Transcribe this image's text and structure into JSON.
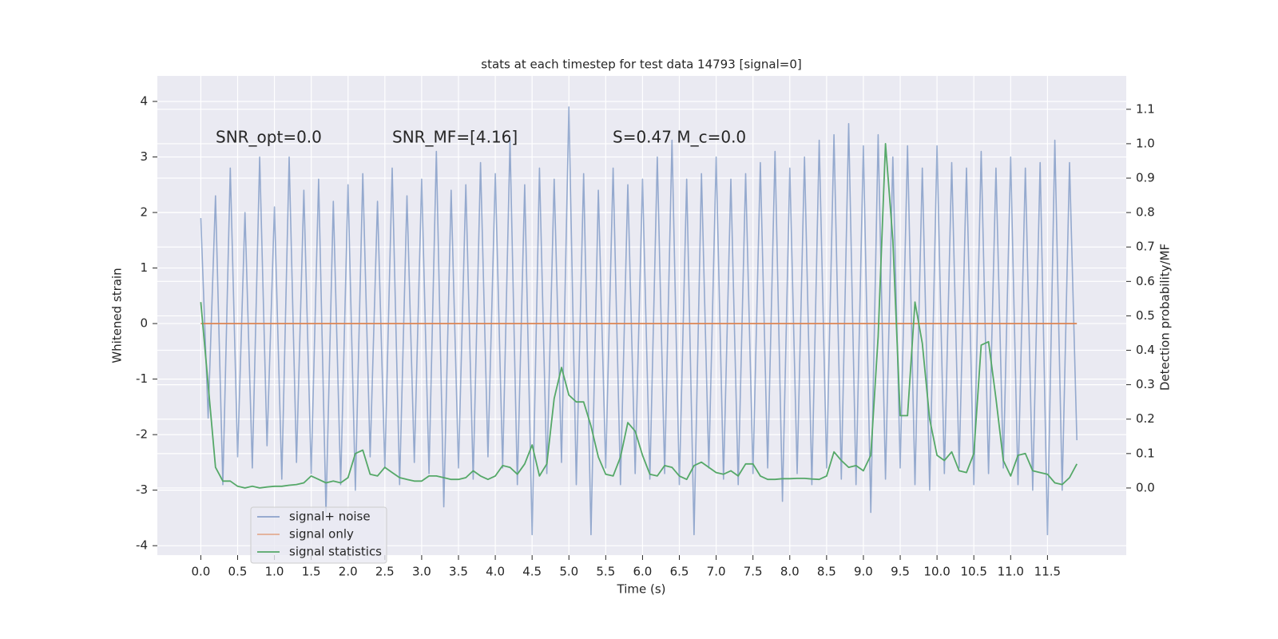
{
  "chart_data": {
    "type": "line",
    "title": "stats at each timestep for test data 14793 [signal=0]",
    "xlabel": "Time (s)",
    "ylabel": "Whitened strain",
    "y2label": "Detection probability/MF",
    "annotations": [
      "SNR_opt=0.0",
      "SNR_MF=[4.16]",
      "S=0.47   M_c=0.0"
    ],
    "xlim": [
      -0.59,
      12.57
    ],
    "ylim": [
      -4.17,
      4.46
    ],
    "y2lim": [
      -0.195,
      1.197
    ],
    "xticks": [
      {
        "value": 0,
        "label": "0.0"
      },
      0.5,
      {
        "value": 1,
        "label": "1.0"
      },
      1.5,
      {
        "value": 2,
        "label": "2.0"
      },
      2.5,
      {
        "value": 3,
        "label": "3.0"
      },
      3.5,
      {
        "value": 4,
        "label": "4.0"
      },
      4.5,
      {
        "value": 5,
        "label": "5.0"
      },
      5.5,
      {
        "value": 6,
        "label": "6.0"
      },
      6.5,
      {
        "value": 7,
        "label": "7.0"
      },
      7.5,
      {
        "value": 8,
        "label": "8.0"
      },
      8.5,
      {
        "value": 9,
        "label": "9.0"
      },
      9.5,
      {
        "value": 10,
        "label": "10.0"
      },
      10.5,
      {
        "value": 11,
        "label": "11.0"
      },
      11.5
    ],
    "yticks": [
      -4,
      -3,
      -2,
      -1,
      0,
      1,
      2,
      3,
      4
    ],
    "y2ticks": [
      {
        "value": 0,
        "label": "0.0"
      },
      0.1,
      0.2,
      0.3,
      0.4,
      0.5,
      0.6,
      0.7,
      0.8,
      0.9,
      {
        "value": 1,
        "label": "1.0"
      },
      1.1
    ],
    "grid": true,
    "legend": "lower left",
    "x": [
      0.0,
      0.1,
      0.2,
      0.3,
      0.4,
      0.5,
      0.6,
      0.7,
      0.8,
      0.9,
      1.0,
      1.1,
      1.2,
      1.3,
      1.4,
      1.5,
      1.6,
      1.7,
      1.8,
      1.9,
      2.0,
      2.1,
      2.2,
      2.3,
      2.4,
      2.5,
      2.6,
      2.7,
      2.8,
      2.9,
      3.0,
      3.1,
      3.2,
      3.3,
      3.4,
      3.5,
      3.6,
      3.7,
      3.8,
      3.9,
      4.0,
      4.1,
      4.2,
      4.3,
      4.4,
      4.5,
      4.6,
      4.7,
      4.8,
      4.9,
      5.0,
      5.1,
      5.2,
      5.3,
      5.4,
      5.5,
      5.6,
      5.7,
      5.8,
      5.9,
      6.0,
      6.1,
      6.2,
      6.3,
      6.4,
      6.5,
      6.6,
      6.7,
      6.8,
      6.9,
      7.0,
      7.1,
      7.2,
      7.3,
      7.4,
      7.5,
      7.6,
      7.7,
      7.8,
      7.9,
      8.0,
      8.1,
      8.2,
      8.3,
      8.4,
      8.5,
      8.6,
      8.7,
      8.8,
      8.9,
      9.0,
      9.1,
      9.2,
      9.3,
      9.4,
      9.5,
      9.6,
      9.7,
      9.8,
      9.9,
      10.0,
      10.1,
      10.2,
      10.3,
      10.4,
      10.5,
      10.6,
      10.7,
      10.8,
      10.9,
      11.0,
      11.1,
      11.2,
      11.3,
      11.4,
      11.5,
      11.6,
      11.7,
      11.8,
      11.9
    ],
    "series": [
      {
        "name": "signal+ noise",
        "color": "#4c72b0",
        "values": [
          1.9,
          -1.7,
          2.3,
          -2.9,
          2.8,
          -2.4,
          2.0,
          -2.6,
          3.0,
          -2.2,
          2.1,
          -2.8,
          3.0,
          -2.5,
          2.4,
          -2.7,
          2.6,
          -3.4,
          2.2,
          -2.9,
          2.5,
          -3.0,
          2.7,
          -2.4,
          2.2,
          -2.6,
          2.8,
          -2.9,
          2.3,
          -2.5,
          2.6,
          -2.7,
          3.1,
          -3.3,
          2.4,
          -2.6,
          2.5,
          -2.8,
          2.9,
          -2.4,
          2.7,
          -2.6,
          3.3,
          -2.9,
          2.5,
          -3.8,
          2.8,
          -2.7,
          2.6,
          -2.5,
          3.9,
          -2.9,
          2.7,
          -3.8,
          2.4,
          -2.6,
          2.8,
          -2.9,
          2.5,
          -2.7,
          2.6,
          -2.8,
          3.0,
          -2.7,
          3.3,
          -2.9,
          2.6,
          -3.8,
          2.7,
          -2.6,
          3.0,
          -2.8,
          2.6,
          -2.9,
          2.7,
          -2.7,
          2.9,
          -2.6,
          3.1,
          -3.2,
          2.8,
          -2.7,
          3.0,
          -2.9,
          3.3,
          -2.6,
          3.4,
          -2.8,
          3.6,
          -2.9,
          3.2,
          -3.4,
          3.4,
          -2.8,
          3.0,
          -2.6,
          3.2,
          -2.9,
          2.8,
          -3.0,
          3.2,
          -2.7,
          2.9,
          -2.6,
          2.8,
          -2.9,
          3.1,
          -2.7,
          2.8,
          -2.6,
          3.0,
          -2.9,
          2.8,
          -3.0,
          2.9,
          -3.8,
          3.3,
          -3.0,
          2.9,
          -2.1
        ]
      },
      {
        "name": "signal only",
        "color": "#dd8452",
        "values": [
          0,
          0,
          0,
          0,
          0,
          0,
          0,
          0,
          0,
          0,
          0,
          0,
          0,
          0,
          0,
          0,
          0,
          0,
          0,
          0,
          0,
          0,
          0,
          0,
          0,
          0,
          0,
          0,
          0,
          0,
          0,
          0,
          0,
          0,
          0,
          0,
          0,
          0,
          0,
          0,
          0,
          0,
          0,
          0,
          0,
          0,
          0,
          0,
          0,
          0,
          0,
          0,
          0,
          0,
          0,
          0,
          0,
          0,
          0,
          0,
          0,
          0,
          0,
          0,
          0,
          0,
          0,
          0,
          0,
          0,
          0,
          0,
          0,
          0,
          0,
          0,
          0,
          0,
          0,
          0,
          0,
          0,
          0,
          0,
          0,
          0,
          0,
          0,
          0,
          0,
          0,
          0,
          0,
          0,
          0,
          0,
          0,
          0,
          0,
          0,
          0,
          0,
          0,
          0,
          0,
          0,
          0,
          0,
          0,
          0,
          0,
          0,
          0,
          0,
          0,
          0,
          0,
          0,
          0,
          0
        ]
      },
      {
        "name": "signal statistics",
        "color": "#55a868",
        "axis": "y2",
        "values": [
          0.54,
          0.3,
          0.06,
          0.02,
          0.02,
          0.005,
          0,
          0.005,
          0,
          0.003,
          0.005,
          0.005,
          0.008,
          0.01,
          0.015,
          0.035,
          0.025,
          0.015,
          0.02,
          0.015,
          0.03,
          0.1,
          0.11,
          0.04,
          0.035,
          0.06,
          0.045,
          0.03,
          0.025,
          0.02,
          0.02,
          0.035,
          0.035,
          0.03,
          0.025,
          0.025,
          0.03,
          0.05,
          0.035,
          0.025,
          0.035,
          0.065,
          0.06,
          0.04,
          0.07,
          0.125,
          0.035,
          0.07,
          0.26,
          0.35,
          0.27,
          0.25,
          0.25,
          0.18,
          0.09,
          0.04,
          0.035,
          0.09,
          0.19,
          0.165,
          0.095,
          0.04,
          0.035,
          0.065,
          0.06,
          0.035,
          0.025,
          0.065,
          0.075,
          0.06,
          0.045,
          0.04,
          0.05,
          0.035,
          0.07,
          0.07,
          0.035,
          0.025,
          0.025,
          0.027,
          0.027,
          0.028,
          0.028,
          0.026,
          0.025,
          0.035,
          0.105,
          0.08,
          0.06,
          0.065,
          0.05,
          0.095,
          0.44,
          1.0,
          0.72,
          0.21,
          0.21,
          0.54,
          0.42,
          0.2,
          0.095,
          0.08,
          0.105,
          0.05,
          0.045,
          0.1,
          0.415,
          0.425,
          0.26,
          0.08,
          0.035,
          0.095,
          0.1,
          0.05,
          0.045,
          0.04,
          0.015,
          0.01,
          0.03,
          0.07
        ]
      }
    ]
  }
}
